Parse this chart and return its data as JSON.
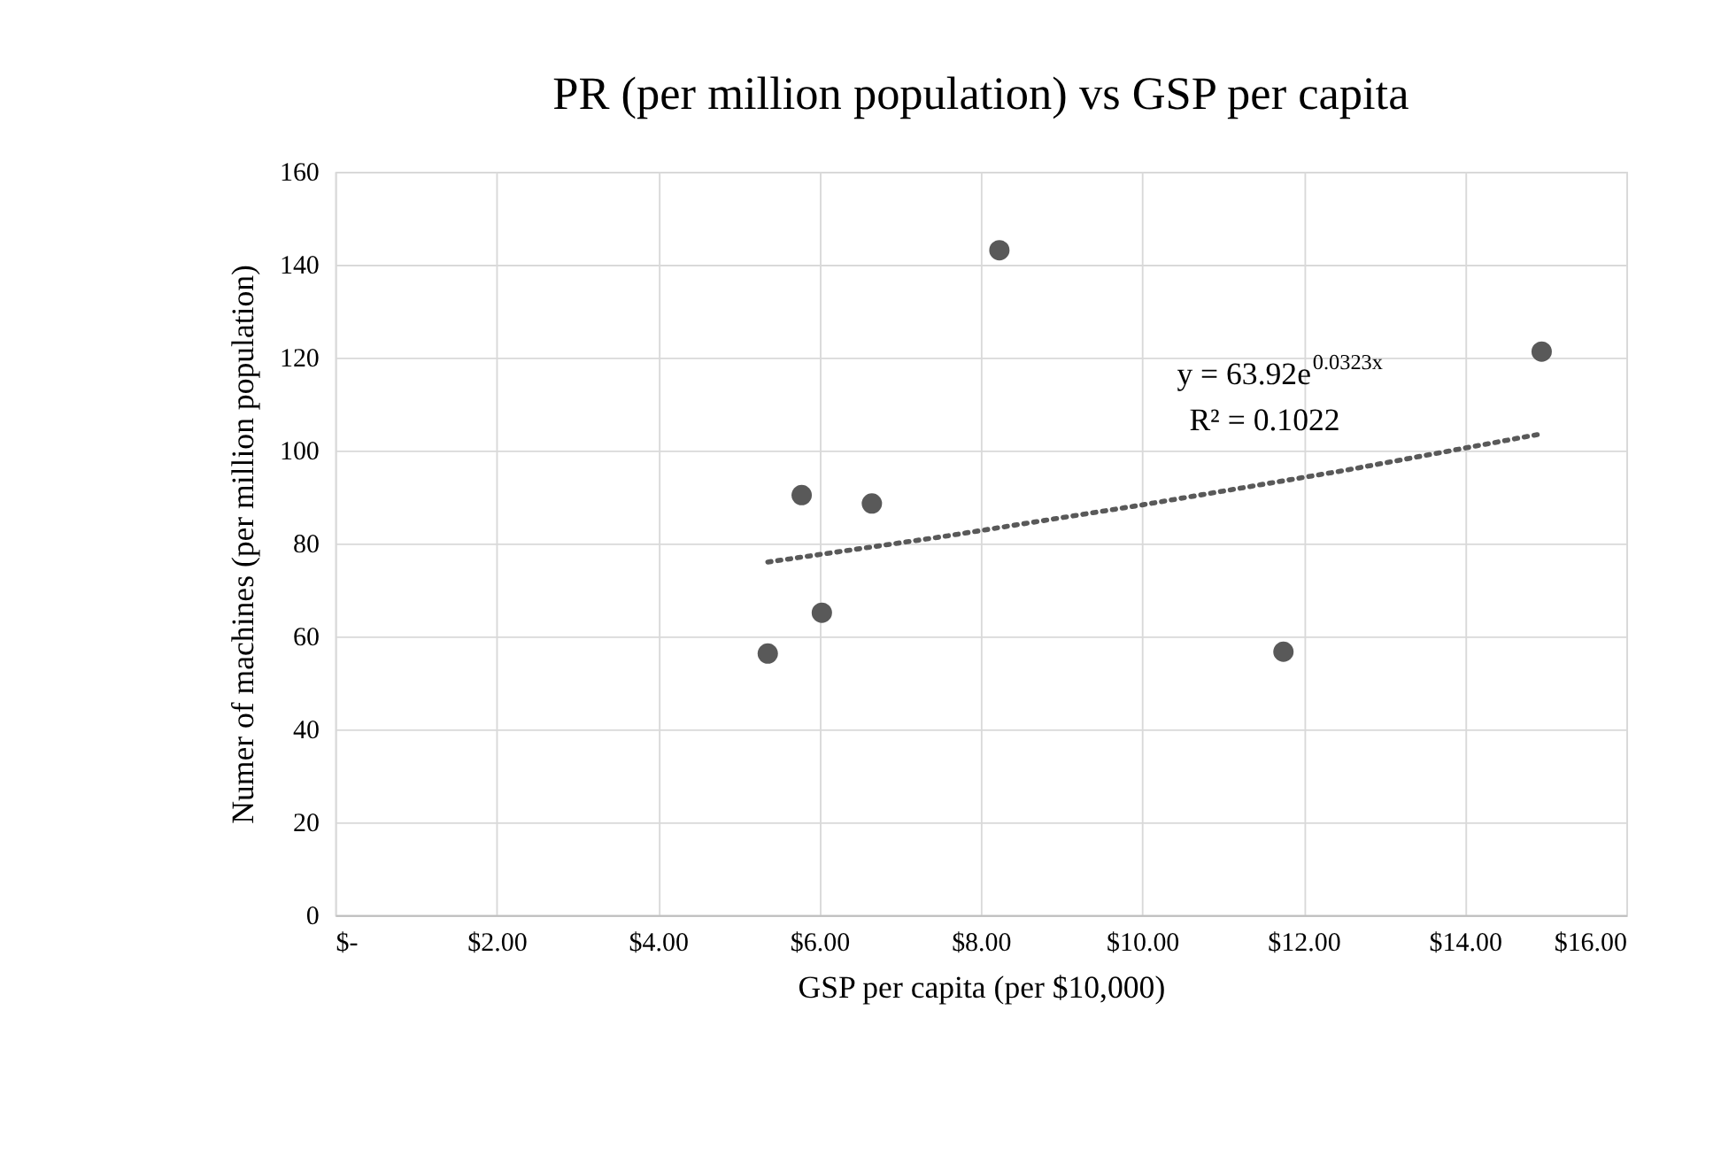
{
  "chart_data": {
    "type": "scatter",
    "title": "PR (per million population) vs GSP per capita",
    "xlabel": "GSP per capita (per $10,000)",
    "ylabel": "Numer of machines (per million population)",
    "xlim": [
      0,
      16
    ],
    "xticks": [
      {
        "value": 0,
        "label": "$-"
      },
      {
        "value": 2,
        "label": "$2.00"
      },
      {
        "value": 4,
        "label": "$4.00"
      },
      {
        "value": 6,
        "label": "$6.00"
      },
      {
        "value": 8,
        "label": "$8.00"
      },
      {
        "value": 10,
        "label": "$10.00"
      },
      {
        "value": 12,
        "label": "$12.00"
      },
      {
        "value": 14,
        "label": "$14.00"
      },
      {
        "value": 16,
        "label": "$16.00"
      }
    ],
    "ylim": [
      0,
      160
    ],
    "yticks": [
      0,
      20,
      40,
      60,
      80,
      100,
      120,
      140,
      160
    ],
    "grid": true,
    "marker": "circle",
    "series": [
      {
        "color": "#595959",
        "x": [
          5.36,
          5.78,
          6.03,
          6.65,
          8.23,
          11.75,
          14.95
        ],
        "values": [
          56.3,
          90.4,
          65.1,
          88.6,
          143.1,
          56.7,
          121.3
        ]
      },
      {
        "type": "line",
        "line_style": "dotted",
        "marker": "none",
        "color": "#595959",
        "x": [
          5.36,
          7.5,
          10,
          12.5,
          14.95
        ],
        "values": [
          76.0,
          81.4,
          88.3,
          95.7,
          103.6
        ]
      }
    ],
    "annotations": [
      "y = 63.92e$^{0.0323x}$",
      "R² = 0.1022"
    ]
  }
}
